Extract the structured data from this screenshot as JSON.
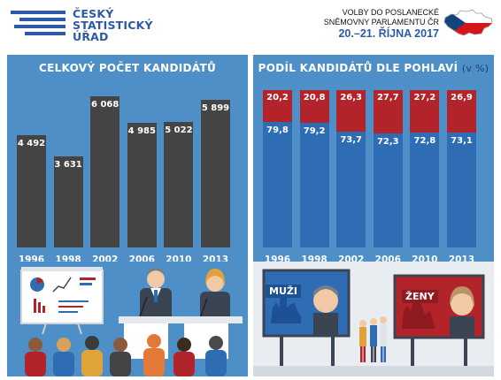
{
  "header": {
    "logo_lines": [
      "ČESKÝ",
      "STATISTICKÝ",
      "ÚŘAD"
    ],
    "election_line1": "VOLBY DO POSLANECKÉ",
    "election_line2": "SNĚMOVNY PARLAMENTU ČR",
    "election_date": "20.–21. ŘÍJNA 2017",
    "brand_color": "#2d5aa8",
    "flag_colors": [
      "#ffffff",
      "#d7141a",
      "#11457e"
    ]
  },
  "panel_left": {
    "title": "CELKOVÝ POČET KANDIDÁTŮ"
  },
  "panel_right": {
    "title": "PODÍL KANDIDÁTŮ DLE POHLAVÍ",
    "unit": "(v %)"
  },
  "billboards": {
    "men_label": "MUŽI",
    "women_label": "ŽENY"
  },
  "colors": {
    "panel_bg": "#4f8fc7",
    "bar_total": "#444444",
    "men": "#2e6db4",
    "women": "#b3232a"
  },
  "chart_data": [
    {
      "type": "bar",
      "title": "CELKOVÝ POČET KANDIDÁTŮ",
      "categories": [
        "1996",
        "1998",
        "2002",
        "2006",
        "2010",
        "2013"
      ],
      "values": [
        4492,
        3631,
        6068,
        4985,
        5022,
        5899
      ],
      "value_labels": [
        "4 492",
        "3 631",
        "6 068",
        "4 985",
        "5 022",
        "5 899"
      ],
      "ylim": [
        0,
        6300
      ],
      "grid": false
    },
    {
      "type": "bar",
      "stacked": true,
      "title": "PODÍL KANDIDÁTŮ DLE POHLAVÍ",
      "unit": "(v %)",
      "categories": [
        "1996",
        "1998",
        "2002",
        "2006",
        "2010",
        "2013"
      ],
      "series": [
        {
          "values": [
            79.8,
            79.2,
            73.7,
            72.3,
            72.8,
            73.1
          ],
          "labels": [
            "79,8",
            "79,2",
            "73,7",
            "72,3",
            "72,8",
            "73,1"
          ],
          "color": "#2e6db4"
        },
        {
          "values": [
            20.2,
            20.8,
            26.3,
            27.7,
            27.2,
            26.9
          ],
          "labels": [
            "20,2",
            "20,8",
            "26,3",
            "27,7",
            "27,2",
            "26,9"
          ],
          "color": "#b3232a"
        }
      ],
      "ylim": [
        0,
        100
      ],
      "grid": false
    }
  ]
}
